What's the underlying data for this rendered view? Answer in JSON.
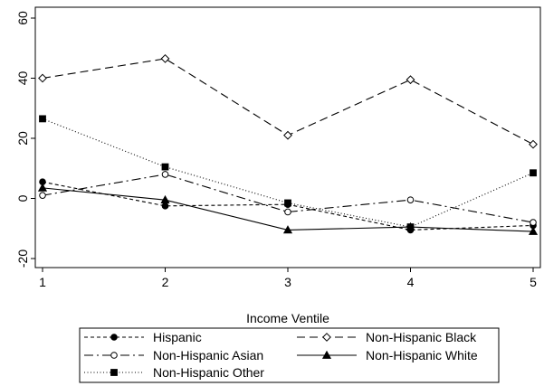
{
  "chart_data": {
    "type": "line",
    "xlabel": "Income Ventile",
    "ylabel": "",
    "title": "",
    "x": [
      1,
      2,
      3,
      4,
      5
    ],
    "xlim": [
      1,
      5
    ],
    "ylim": [
      -20,
      60
    ],
    "y_ticks": [
      -20,
      0,
      20,
      40,
      60
    ],
    "x_ticks": [
      1,
      2,
      3,
      4,
      5
    ],
    "grid": false,
    "legend_position": "bottom",
    "series": [
      {
        "name": "Hispanic",
        "values": [
          5.5,
          -2.5,
          -2,
          -10.5,
          -9
        ],
        "line_style": "short-dash",
        "marker": "filled-circle"
      },
      {
        "name": "Non-Hispanic Black",
        "values": [
          40,
          46.5,
          21,
          39.5,
          18
        ],
        "line_style": "long-dash",
        "marker": "hollow-diamond"
      },
      {
        "name": "Non-Hispanic Asian",
        "values": [
          1,
          8,
          -4.5,
          -0.5,
          -8
        ],
        "line_style": "dash-dot",
        "marker": "hollow-circle"
      },
      {
        "name": "Non-Hispanic White",
        "values": [
          3.5,
          -0.5,
          -10.5,
          -9.5,
          -11
        ],
        "line_style": "solid",
        "marker": "filled-triangle"
      },
      {
        "name": "Non-Hispanic Other",
        "values": [
          26.5,
          10.5,
          -1.5,
          -9.5,
          8.5
        ],
        "line_style": "dotted",
        "marker": "filled-square"
      }
    ]
  }
}
